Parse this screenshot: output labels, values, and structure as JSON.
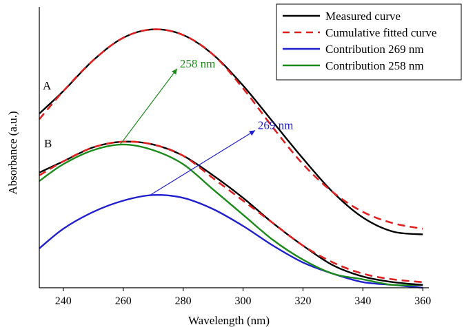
{
  "chart_data": {
    "type": "line",
    "xlabel": "Wavelength (nm)",
    "ylabel": "Absorbance (a.u.)",
    "xlim": [
      232,
      362
    ],
    "ylim": [
      0,
      1
    ],
    "xticks": [
      240,
      260,
      280,
      300,
      320,
      340,
      360
    ],
    "y_tick_labels": false,
    "grid": false,
    "legend_position": "top-right",
    "series": [
      {
        "key": "A_measured",
        "name": "Measured curve",
        "color": "#000000",
        "style": "solid",
        "x": [
          232,
          240,
          250,
          260,
          270,
          280,
          290,
          300,
          310,
          320,
          330,
          340,
          350,
          360
        ],
        "y": [
          0.62,
          0.7,
          0.81,
          0.89,
          0.92,
          0.9,
          0.83,
          0.72,
          0.59,
          0.46,
          0.34,
          0.25,
          0.2,
          0.19
        ]
      },
      {
        "key": "A_fitted",
        "name": "Cumulative fitted curve",
        "color": "#e02020",
        "style": "dashed",
        "x": [
          232,
          240,
          250,
          260,
          270,
          280,
          290,
          300,
          310,
          320,
          330,
          340,
          350,
          360
        ],
        "y": [
          0.6,
          0.7,
          0.81,
          0.89,
          0.92,
          0.9,
          0.83,
          0.71,
          0.57,
          0.44,
          0.34,
          0.27,
          0.23,
          0.21
        ]
      },
      {
        "key": "B_measured",
        "name": "Measured curve",
        "color": "#000000",
        "style": "solid",
        "x": [
          232,
          240,
          250,
          260,
          270,
          280,
          290,
          300,
          310,
          320,
          330,
          340,
          350,
          360
        ],
        "y": [
          0.41,
          0.45,
          0.5,
          0.52,
          0.51,
          0.47,
          0.4,
          0.32,
          0.23,
          0.15,
          0.08,
          0.04,
          0.02,
          0.01
        ]
      },
      {
        "key": "B_fitted",
        "name": "Cumulative fitted curve",
        "color": "#e02020",
        "style": "dashed",
        "x": [
          232,
          240,
          250,
          260,
          270,
          280,
          290,
          300,
          310,
          320,
          330,
          340,
          350,
          360
        ],
        "y": [
          0.4,
          0.45,
          0.5,
          0.52,
          0.51,
          0.47,
          0.39,
          0.31,
          0.23,
          0.15,
          0.09,
          0.05,
          0.03,
          0.02
        ]
      },
      {
        "key": "B_269",
        "name": "Contribution 269 nm",
        "color": "#1f1fd0",
        "style": "solid",
        "x": [
          232,
          240,
          250,
          260,
          270,
          280,
          290,
          300,
          310,
          320,
          330,
          340,
          350,
          360
        ],
        "y": [
          0.14,
          0.21,
          0.27,
          0.31,
          0.33,
          0.32,
          0.28,
          0.22,
          0.15,
          0.09,
          0.05,
          0.02,
          0.01,
          0.0
        ]
      },
      {
        "key": "B_258",
        "name": "Contribution 258 nm",
        "color": "#1a8a1a",
        "style": "solid",
        "x": [
          232,
          240,
          250,
          260,
          270,
          280,
          290,
          300,
          310,
          320,
          330,
          340,
          350,
          360
        ],
        "y": [
          0.38,
          0.44,
          0.49,
          0.51,
          0.49,
          0.44,
          0.35,
          0.26,
          0.17,
          0.1,
          0.05,
          0.03,
          0.01,
          0.01
        ]
      }
    ],
    "legend": [
      {
        "label": "Measured curve",
        "color": "#000000",
        "style": "solid"
      },
      {
        "label": "Cumulative fitted curve",
        "color": "#e02020",
        "style": "dashed"
      },
      {
        "label": "Contribution 269 nm",
        "color": "#1f1fd0",
        "style": "solid"
      },
      {
        "label": "Contribution 258 nm",
        "color": "#1a8a1a",
        "style": "solid"
      }
    ],
    "curve_labels": {
      "A": "A",
      "B": "B"
    },
    "annotations": [
      {
        "text": "258 nm",
        "color": "#1a8a1a",
        "from": [
          259,
          0.51
        ],
        "to": [
          278,
          0.78
        ]
      },
      {
        "text": "269 nm",
        "color": "#1f1fd0",
        "from": [
          269,
          0.33
        ],
        "to": [
          304,
          0.56
        ]
      }
    ]
  }
}
